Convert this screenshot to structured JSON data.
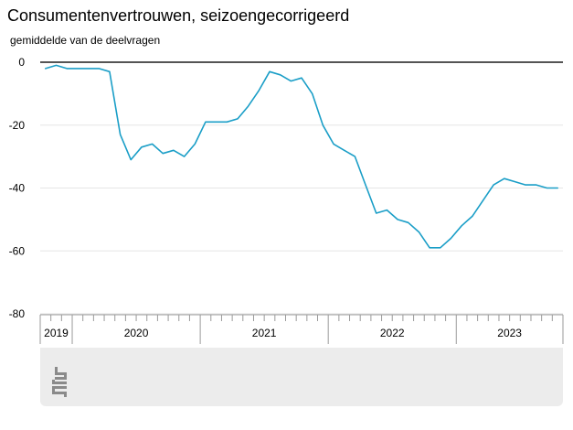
{
  "title": "Consumentenvertrouwen, seizoengecorrigeerd",
  "subtitle": "gemiddelde van de deelvragen",
  "logo": "cbs-logo",
  "colors": {
    "line": "#1a9ec7",
    "grid": "#e6e6e6",
    "zero": "#555555",
    "axis": "#9a9a9a"
  },
  "chart_data": {
    "type": "line",
    "title": "Consumentenvertrouwen, seizoengecorrigeerd",
    "ylabel": "gemiddelde van de deelvragen",
    "ylim": [
      -80,
      0
    ],
    "yticks": [
      0,
      -20,
      -40,
      -60,
      -80
    ],
    "ytick_labels": [
      "0",
      "-20",
      "-40",
      "-60",
      "-80"
    ],
    "grid": true,
    "x_start": "2019-10",
    "x_end": "2023-10",
    "years": [
      {
        "label": "2019",
        "months": 3
      },
      {
        "label": "2020",
        "months": 12
      },
      {
        "label": "2021",
        "months": 12
      },
      {
        "label": "2022",
        "months": 12
      },
      {
        "label": "2023",
        "months": 10
      }
    ],
    "series": [
      {
        "x": [
          "2019-10",
          "2019-11",
          "2019-12",
          "2020-01",
          "2020-02",
          "2020-03",
          "2020-04",
          "2020-05",
          "2020-06",
          "2020-07",
          "2020-08",
          "2020-09",
          "2020-10",
          "2020-11",
          "2020-12",
          "2021-01",
          "2021-02",
          "2021-03",
          "2021-04",
          "2021-05",
          "2021-06",
          "2021-07",
          "2021-08",
          "2021-09",
          "2021-10",
          "2021-11",
          "2021-12",
          "2022-01",
          "2022-02",
          "2022-03",
          "2022-04",
          "2022-05",
          "2022-06",
          "2022-07",
          "2022-08",
          "2022-09",
          "2022-10",
          "2022-11",
          "2022-12",
          "2023-01",
          "2023-02",
          "2023-03",
          "2023-04",
          "2023-05",
          "2023-06",
          "2023-07",
          "2023-08",
          "2023-09",
          "2023-10"
        ],
        "values": [
          -2,
          -1,
          -2,
          -2,
          -2,
          -2,
          -3,
          -23,
          -31,
          -27,
          -26,
          -29,
          -28,
          -30,
          -26,
          -19,
          -19,
          -19,
          -18,
          -14,
          -9,
          -3,
          -4,
          -6,
          -5,
          -10,
          -20,
          -26,
          -28,
          -30,
          -39,
          -48,
          -47,
          -50,
          -51,
          -54,
          -59,
          -59,
          -56,
          -52,
          -49,
          -44,
          -39,
          -37,
          -38,
          -39,
          -39,
          -40,
          -40
        ]
      }
    ]
  }
}
